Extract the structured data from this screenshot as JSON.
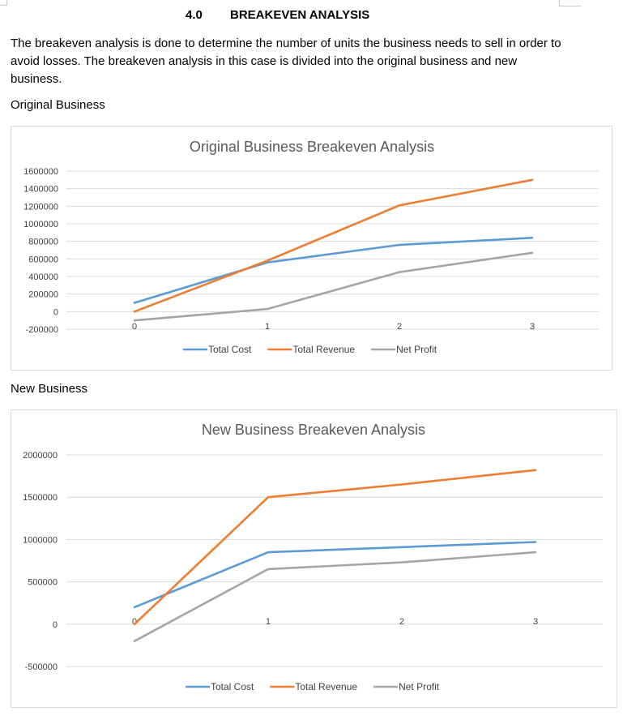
{
  "heading": {
    "number": "4.0",
    "title": "BREAKEVEN ANALYSIS"
  },
  "intro": "The breakeven analysis is done to determine the number of units the business needs to sell in order to avoid losses. The breakeven analysis in this case is divided into the original business and new business.",
  "sections": {
    "original_label": "Original Business",
    "new_label": "New Business"
  },
  "colors": {
    "total_cost": "#5b9bd5",
    "total_revenue": "#ed7d31",
    "net_profit": "#a5a5a5",
    "grid": "#d9d9d9"
  },
  "chart_data": [
    {
      "type": "line",
      "title": "Original Business Breakeven Analysis",
      "categories": [
        "0",
        "1",
        "2",
        "3"
      ],
      "ylim": [
        -200000,
        1600000
      ],
      "yticks": [
        1600000,
        1400000,
        1200000,
        1000000,
        800000,
        600000,
        400000,
        200000,
        0,
        -200000
      ],
      "ytick_labels": [
        "1600000",
        "1400000",
        "1200000",
        "1000000",
        "800000",
        "600000",
        "400000",
        "200000",
        "0",
        "-200000"
      ],
      "legend": "bottom",
      "series": [
        {
          "name": "Total Cost",
          "values": [
            100000,
            560000,
            760000,
            840000
          ]
        },
        {
          "name": "Total Revenue",
          "values": [
            0,
            580000,
            1210000,
            1500000
          ]
        },
        {
          "name": "Net Profit",
          "values": [
            -100000,
            30000,
            450000,
            670000
          ]
        }
      ]
    },
    {
      "type": "line",
      "title": "New Business Breakeven Analysis",
      "categories": [
        "0",
        "1",
        "2",
        "3"
      ],
      "ylim": [
        -500000,
        2000000
      ],
      "yticks": [
        2000000,
        1500000,
        1000000,
        500000,
        0,
        -500000
      ],
      "ytick_labels": [
        "2000000",
        "1500000",
        "1000000",
        "500000",
        "0",
        "-500000"
      ],
      "legend": "bottom",
      "series": [
        {
          "name": "Total Cost",
          "values": [
            200000,
            850000,
            910000,
            970000
          ]
        },
        {
          "name": "Total Revenue",
          "values": [
            0,
            1500000,
            1650000,
            1820000
          ]
        },
        {
          "name": "Net Profit",
          "values": [
            -200000,
            650000,
            730000,
            850000
          ]
        }
      ]
    }
  ]
}
